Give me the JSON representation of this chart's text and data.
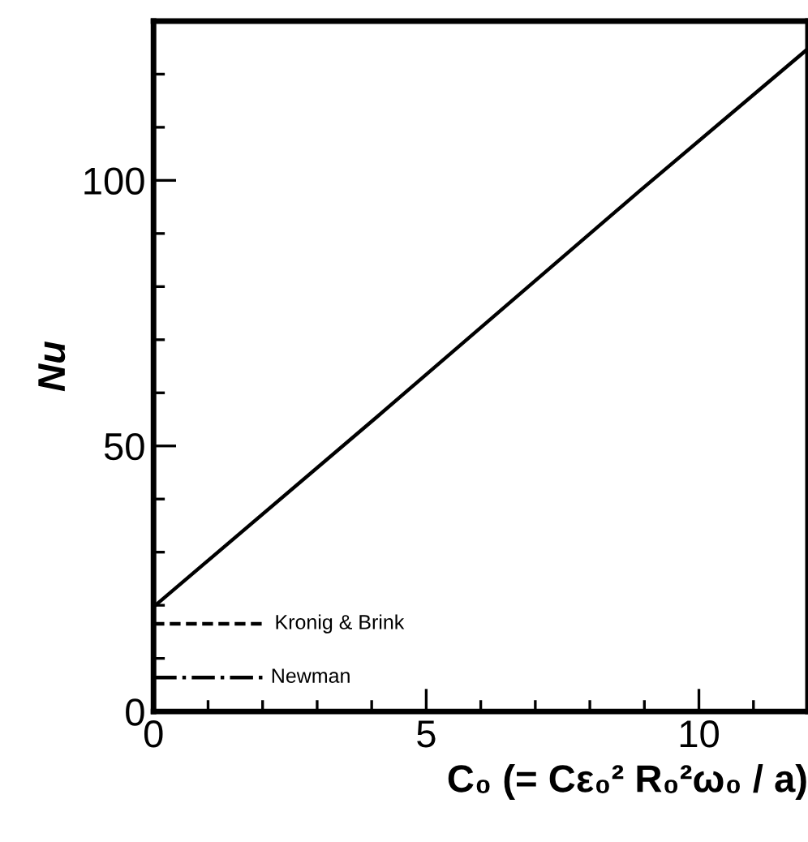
{
  "chart_data": {
    "type": "line",
    "xlabel": "C₀ (= Cε₀² R₀²ω₀ / a)",
    "ylabel": "Nu",
    "xlim": [
      0,
      12
    ],
    "ylim": [
      0,
      130
    ],
    "xticks": [
      0,
      {
        "value": 1,
        "label": null
      },
      {
        "value": 2,
        "label": null
      },
      {
        "value": 3,
        "label": null
      },
      {
        "value": 4,
        "label": null
      },
      5,
      {
        "value": 6,
        "label": null
      },
      {
        "value": 7,
        "label": null
      },
      {
        "value": 8,
        "label": null
      },
      {
        "value": 9,
        "label": null
      },
      10,
      {
        "value": 11,
        "label": null
      }
    ],
    "yticks": [
      0,
      {
        "value": 10,
        "label": null
      },
      {
        "value": 20,
        "label": null
      },
      {
        "value": 30,
        "label": null
      },
      {
        "value": 40,
        "label": null
      },
      50,
      {
        "value": 60,
        "label": null
      },
      {
        "value": 70,
        "label": null
      },
      {
        "value": 80,
        "label": null
      },
      {
        "value": 90,
        "label": null
      },
      100,
      {
        "value": 110,
        "label": null
      },
      {
        "value": 120,
        "label": null
      }
    ],
    "grid": false,
    "legend": false,
    "marker": "none",
    "series": [
      {
        "color": "#000000",
        "line_style": "solid",
        "x": [
          0,
          4.1,
          8.9,
          12
        ],
        "values": [
          19.7,
          55.5,
          97.9,
          124.8
        ]
      },
      {
        "name": "Kronig & Brink",
        "color": "#000000",
        "line_style": "dashed",
        "x": [
          0,
          2.07
        ],
        "values": [
          16.5,
          16.5
        ]
      },
      {
        "name": "Newman",
        "color": "#000000",
        "line_style": "dashdot",
        "x": [
          0,
          2.0
        ],
        "values": [
          6.4,
          6.4
        ]
      }
    ]
  }
}
